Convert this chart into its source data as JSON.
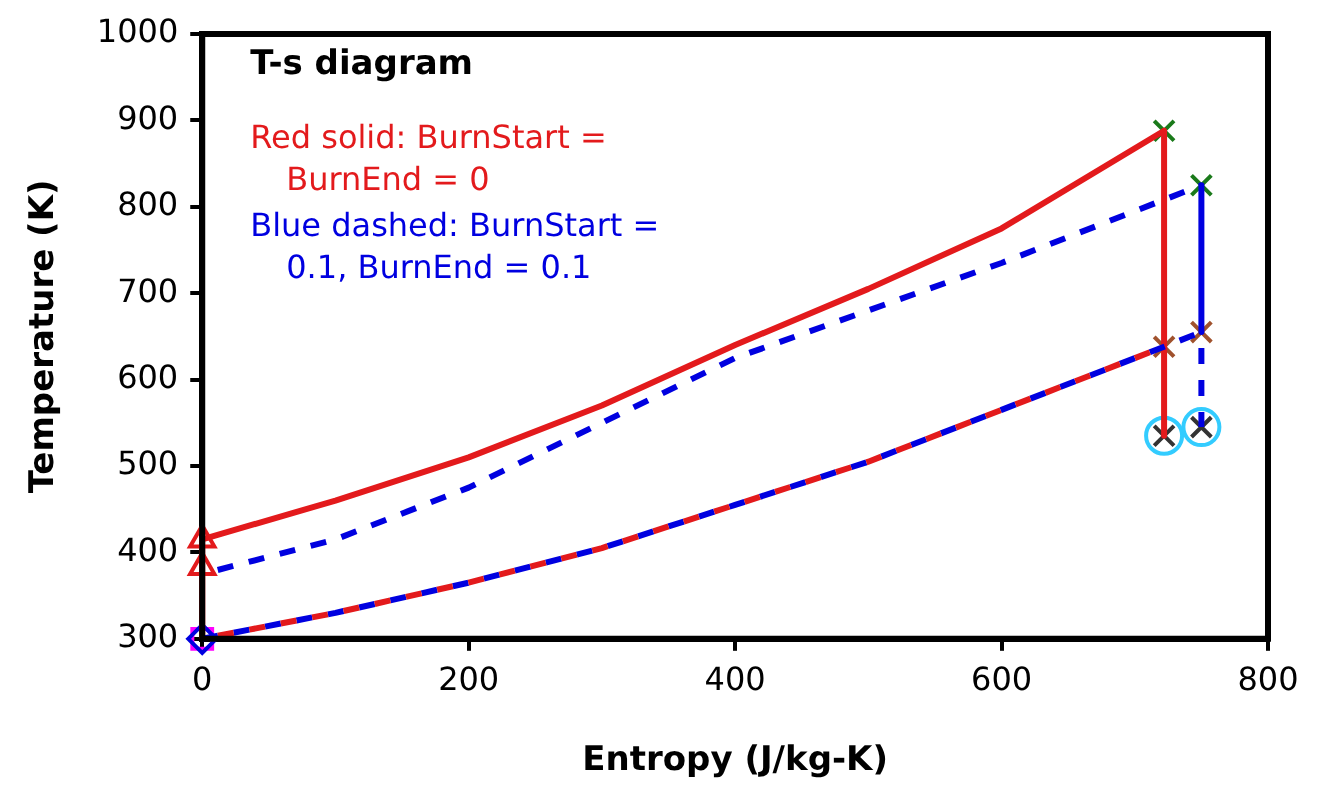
{
  "chart_data": {
    "type": "line",
    "title": "T-s diagram",
    "xlabel": "Entropy (J/kg-K)",
    "ylabel": "Temperature (K)",
    "xlim": [
      0,
      800
    ],
    "xticks": [
      0,
      200,
      400,
      600,
      800
    ],
    "ylim": [
      300,
      1000
    ],
    "yticks": [
      300,
      400,
      500,
      600,
      700,
      800,
      900,
      1000
    ],
    "grid": false,
    "legend": false,
    "annotations": [
      "Red solid: BurnStart = BurnEnd = 0",
      "Blue dashed: BurnStart = 0.1, BurnEnd = 0.1"
    ],
    "series": [
      {
        "color": "#e31a1c",
        "line_style": "solid",
        "x": [
          0,
          0,
          100,
          200,
          300,
          400,
          500,
          600,
          722,
          722
        ],
        "values": [
          300,
          415,
          460,
          510,
          570,
          640,
          705,
          775,
          888,
          535
        ]
      },
      {
        "color": "#0000e0",
        "line_style": "dashed",
        "x": [
          0,
          100,
          200,
          300,
          400,
          500,
          600,
          700,
          750
        ],
        "values": [
          375,
          415,
          475,
          550,
          625,
          680,
          735,
          795,
          825
        ]
      },
      {
        "color": "#0000e0",
        "line_style": "solid",
        "x": [
          750,
          750
        ],
        "values": [
          825,
          655
        ]
      },
      {
        "color": "#0000e0",
        "line_style": "dashed",
        "x": [
          750,
          750
        ],
        "values": [
          655,
          545
        ]
      },
      {
        "color": "#0000e0",
        "line_style": "dashed",
        "x": [
          0,
          100,
          200,
          300,
          400,
          500,
          600,
          722,
          750
        ],
        "values": [
          300,
          330,
          365,
          405,
          455,
          505,
          565,
          638,
          655
        ]
      },
      {
        "color": "#e31a1c",
        "line_style": "dashed",
        "x": [
          0,
          100,
          200,
          300,
          400,
          500,
          600,
          722
        ],
        "values": [
          300,
          330,
          365,
          405,
          455,
          505,
          565,
          638
        ]
      },
      {
        "type": "scatter",
        "color": "#e31a1c",
        "marker": "triangle",
        "x": [
          0,
          0
        ],
        "values": [
          415,
          383
        ]
      },
      {
        "type": "scatter",
        "color": "#ff00ff",
        "marker": "square",
        "x": [
          0
        ],
        "values": [
          300
        ]
      },
      {
        "type": "scatter",
        "color": "#0000e0",
        "marker": "diamond",
        "x": [
          0
        ],
        "values": [
          300
        ]
      },
      {
        "type": "scatter",
        "color": "#1a7a1a",
        "marker": "cross",
        "x": [
          722,
          750
        ],
        "values": [
          888,
          825
        ]
      },
      {
        "type": "scatter",
        "color": "#a0522d",
        "marker": "cross",
        "x": [
          722,
          750
        ],
        "values": [
          638,
          655
        ]
      },
      {
        "type": "scatter",
        "color": "#33ccff",
        "marker": "circle",
        "x": [
          722,
          750
        ],
        "values": [
          535,
          545
        ]
      },
      {
        "type": "scatter",
        "color": "#333333",
        "marker": "cross",
        "x": [
          722,
          750
        ],
        "values": [
          535,
          545
        ]
      }
    ]
  }
}
